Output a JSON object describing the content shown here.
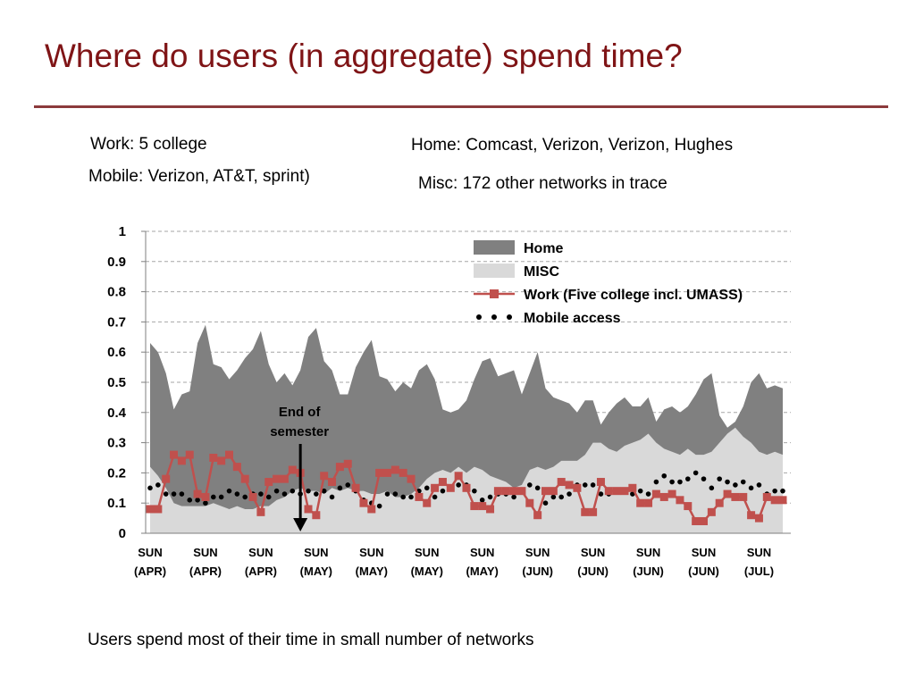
{
  "slide": {
    "title": "Where do users (in aggregate) spend time?",
    "notes": {
      "work": "Work: 5 college",
      "mobile": "Mobile: Verizon, AT&T, sprint)",
      "home": "Home: Comcast, Verizon, Verizon, Hughes",
      "misc": "Misc: 172 other networks in trace"
    },
    "footer": "Users spend most of their time in small number of networks",
    "colors": {
      "title": "#7f1416",
      "rule": "#8c3a3c",
      "home_fill": "#808080",
      "misc_fill": "#d9d9d9",
      "work_line": "#c0504d",
      "mobile_dots": "#000000"
    }
  },
  "chart_data": {
    "type": "area",
    "title": "",
    "xlabel": "",
    "ylabel": "",
    "ylim": [
      0,
      1
    ],
    "yticks": [
      "0",
      "0.1",
      "0.2",
      "0.3",
      "0.4",
      "0.5",
      "0.6",
      "0.7",
      "0.8",
      "0.9",
      "1"
    ],
    "grid": true,
    "legend_position": "top-right",
    "x_tick_labels": [
      [
        "SUN",
        "(APR)"
      ],
      [
        "SUN",
        "(APR)"
      ],
      [
        "SUN",
        "(APR)"
      ],
      [
        "SUN",
        "(MAY)"
      ],
      [
        "SUN",
        "(MAY)"
      ],
      [
        "SUN",
        "(MAY)"
      ],
      [
        "SUN",
        "(MAY)"
      ],
      [
        "SUN",
        "(JUN)"
      ],
      [
        "SUN",
        "(JUN)"
      ],
      [
        "SUN",
        "(JUN)"
      ],
      [
        "SUN",
        "(JUN)"
      ],
      [
        "SUN",
        "(JUL)"
      ]
    ],
    "x_tick_day_index": [
      0,
      7,
      14,
      21,
      28,
      35,
      42,
      49,
      56,
      63,
      70,
      77
    ],
    "n_days": 81,
    "annotation": {
      "lines": [
        "End of",
        "semester"
      ],
      "day_index": 19
    },
    "series": [
      {
        "name": "Home",
        "style": "area",
        "values": [
          0.63,
          0.6,
          0.53,
          0.41,
          0.46,
          0.47,
          0.63,
          0.69,
          0.56,
          0.55,
          0.51,
          0.54,
          0.58,
          0.61,
          0.67,
          0.56,
          0.5,
          0.53,
          0.49,
          0.54,
          0.65,
          0.68,
          0.57,
          0.54,
          0.46,
          0.46,
          0.55,
          0.6,
          0.64,
          0.52,
          0.51,
          0.47,
          0.5,
          0.48,
          0.54,
          0.56,
          0.51,
          0.41,
          0.4,
          0.41,
          0.44,
          0.51,
          0.57,
          0.58,
          0.52,
          0.53,
          0.54,
          0.46,
          0.53,
          0.6,
          0.48,
          0.45,
          0.44,
          0.43,
          0.4,
          0.44,
          0.44,
          0.36,
          0.4,
          0.43,
          0.45,
          0.42,
          0.42,
          0.45,
          0.37,
          0.41,
          0.42,
          0.4,
          0.42,
          0.46,
          0.51,
          0.53,
          0.39,
          0.35,
          0.37,
          0.42,
          0.5,
          0.53,
          0.48,
          0.49,
          0.48
        ]
      },
      {
        "name": "MISC",
        "style": "area",
        "values": [
          0.22,
          0.19,
          0.15,
          0.1,
          0.09,
          0.09,
          0.09,
          0.09,
          0.1,
          0.09,
          0.08,
          0.09,
          0.08,
          0.08,
          0.09,
          0.09,
          0.11,
          0.12,
          0.14,
          0.15,
          0.14,
          0.14,
          0.13,
          0.15,
          0.14,
          0.15,
          0.14,
          0.14,
          0.13,
          0.13,
          0.14,
          0.12,
          0.12,
          0.13,
          0.15,
          0.18,
          0.2,
          0.21,
          0.2,
          0.22,
          0.2,
          0.22,
          0.21,
          0.19,
          0.18,
          0.17,
          0.15,
          0.16,
          0.21,
          0.22,
          0.21,
          0.22,
          0.24,
          0.24,
          0.24,
          0.26,
          0.3,
          0.3,
          0.28,
          0.27,
          0.29,
          0.3,
          0.31,
          0.33,
          0.3,
          0.28,
          0.27,
          0.26,
          0.28,
          0.26,
          0.26,
          0.27,
          0.3,
          0.33,
          0.35,
          0.32,
          0.3,
          0.27,
          0.26,
          0.27,
          0.26
        ]
      },
      {
        "name": "Work (Five college incl. UMASS)",
        "style": "line-square-markers",
        "values": [
          0.08,
          0.08,
          0.18,
          0.26,
          0.24,
          0.26,
          0.13,
          0.12,
          0.25,
          0.24,
          0.26,
          0.22,
          0.18,
          0.12,
          0.07,
          0.17,
          0.18,
          0.18,
          0.21,
          0.2,
          0.08,
          0.06,
          0.19,
          0.17,
          0.22,
          0.23,
          0.15,
          0.1,
          0.08,
          0.2,
          0.2,
          0.21,
          0.2,
          0.18,
          0.12,
          0.1,
          0.15,
          0.17,
          0.15,
          0.19,
          0.15,
          0.09,
          0.09,
          0.08,
          0.14,
          0.14,
          0.14,
          0.14,
          0.1,
          0.06,
          0.14,
          0.14,
          0.17,
          0.16,
          0.15,
          0.07,
          0.07,
          0.17,
          0.14,
          0.14,
          0.14,
          0.15,
          0.1,
          0.1,
          0.13,
          0.12,
          0.13,
          0.11,
          0.09,
          0.04,
          0.04,
          0.07,
          0.1,
          0.13,
          0.12,
          0.12,
          0.06,
          0.05,
          0.12,
          0.11,
          0.11
        ]
      },
      {
        "name": "Mobile access",
        "style": "dots",
        "values": [
          0.15,
          0.16,
          0.13,
          0.13,
          0.13,
          0.11,
          0.11,
          0.1,
          0.12,
          0.12,
          0.14,
          0.13,
          0.12,
          0.13,
          0.13,
          0.12,
          0.14,
          0.13,
          0.14,
          0.13,
          0.14,
          0.13,
          0.14,
          0.12,
          0.15,
          0.16,
          0.14,
          0.11,
          0.1,
          0.09,
          0.13,
          0.13,
          0.12,
          0.12,
          0.14,
          0.15,
          0.12,
          0.14,
          0.15,
          0.16,
          0.16,
          0.14,
          0.11,
          0.12,
          0.13,
          0.13,
          0.12,
          0.14,
          0.16,
          0.15,
          0.1,
          0.12,
          0.12,
          0.13,
          0.16,
          0.16,
          0.16,
          0.13,
          0.13,
          0.14,
          0.14,
          0.13,
          0.14,
          0.13,
          0.17,
          0.19,
          0.17,
          0.17,
          0.18,
          0.2,
          0.18,
          0.15,
          0.18,
          0.17,
          0.16,
          0.17,
          0.15,
          0.16,
          0.13,
          0.14,
          0.14
        ]
      }
    ]
  }
}
